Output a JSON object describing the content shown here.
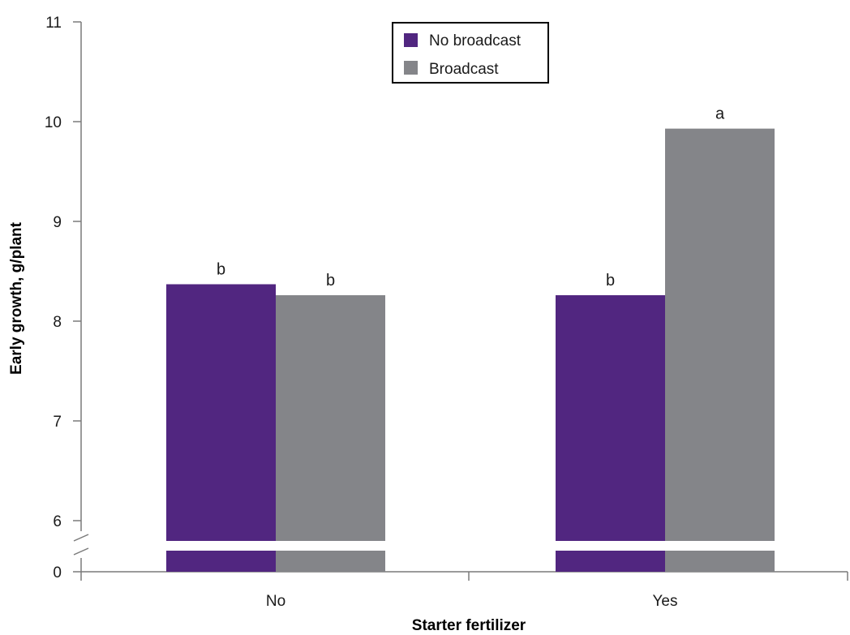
{
  "chart_data": {
    "type": "bar",
    "categories": [
      "No",
      "Yes"
    ],
    "series": [
      {
        "name": "No broadcast",
        "color": "#512680",
        "values": [
          8.37,
          8.26
        ],
        "labels": [
          "b",
          "b"
        ]
      },
      {
        "name": "Broadcast",
        "color": "#848589",
        "values": [
          8.26,
          9.93
        ],
        "labels": [
          "b",
          "a"
        ]
      }
    ],
    "xlabel": "Starter fertilizer",
    "ylabel": "Early growth, g/plant",
    "yticks": [
      "0",
      "6",
      "7",
      "8",
      "9",
      "10",
      "11"
    ],
    "ylim": [
      5.8,
      11
    ],
    "axis_break": true,
    "legend_position": "top-center",
    "grid": false
  }
}
